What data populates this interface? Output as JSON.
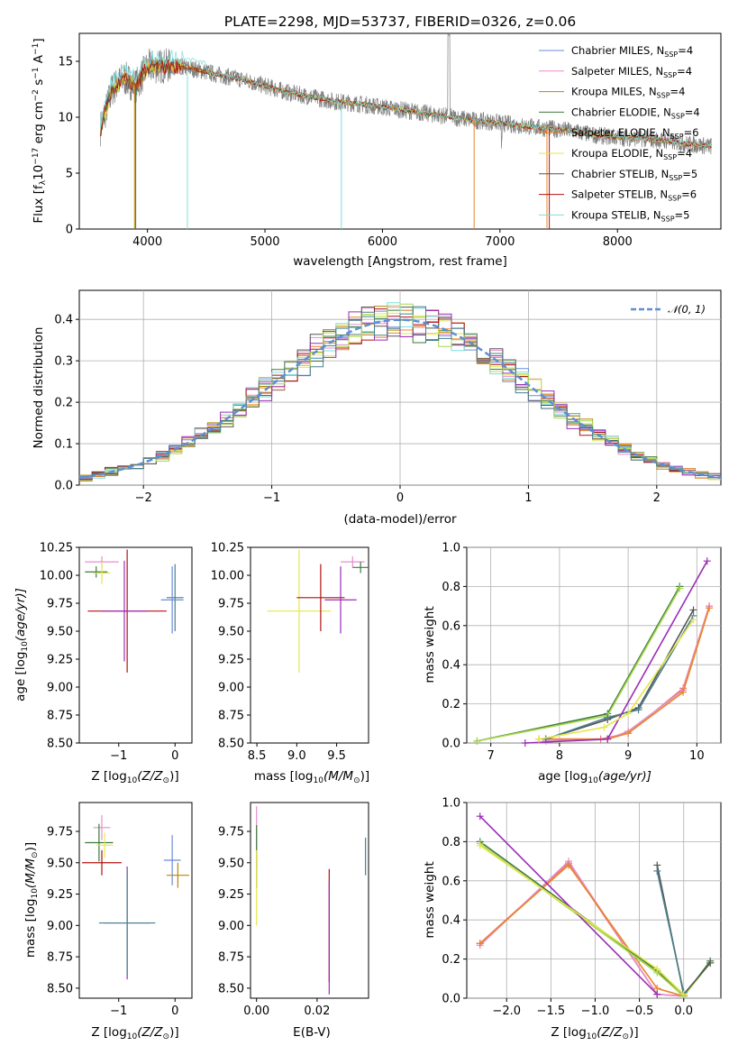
{
  "figure": {
    "title": "PLATE=2298, MJD=53737, FIBERID=0326, z=0.06"
  },
  "colors": {
    "data": "#7f7f7f",
    "series": [
      "#6a8ad8",
      "#e58ecb",
      "#b8860b",
      "#3d7a3d",
      "#e8842a",
      "#e6e64d",
      "#555555",
      "#b01010",
      "#7edede",
      "#9b2cb8",
      "#a8d84a",
      "#4a7f8a",
      "#e87a7a"
    ],
    "normal_curve": "#5b8fd6",
    "grid": "#b0b0b0"
  },
  "chart_data": [
    {
      "id": "spectrum",
      "type": "line",
      "xlabel": "wavelength [Angstrom, rest frame]",
      "ylabel_main": "Flux [f",
      "ylabel_sub": "λ",
      "ylabel_rest": "10",
      "ylabel_sup1": "−17",
      "ylabel_mid": " erg cm",
      "ylabel_sup2": "−2",
      "ylabel_mid2": " s",
      "ylabel_sup3": "−1",
      "ylabel_mid3": " A",
      "ylabel_sup4": "−1",
      "ylabel_end": "]",
      "xlim": [
        3420,
        8880
      ],
      "ylim": [
        0,
        17.5
      ],
      "xticks": [
        4000,
        5000,
        6000,
        7000,
        8000
      ],
      "yticks": [
        0,
        5,
        10,
        15
      ],
      "continuum": {
        "x": [
          3600,
          3700,
          3800,
          3900,
          4000,
          4200,
          4400,
          4600,
          4800,
          5000,
          5200,
          5400,
          5600,
          5800,
          6000,
          6200,
          6400,
          6600,
          6800,
          7000,
          7200,
          7400,
          7600,
          7800,
          8000,
          8200,
          8400,
          8600,
          8800
        ],
        "y": [
          9.0,
          12.5,
          13.5,
          12.8,
          14.5,
          14.6,
          14.3,
          13.8,
          13.4,
          12.8,
          12.2,
          11.8,
          11.4,
          11.2,
          10.9,
          10.6,
          10.3,
          10.0,
          9.7,
          9.5,
          9.2,
          9.0,
          8.8,
          8.4,
          8.2,
          8.1,
          7.9,
          7.6,
          7.4
        ]
      },
      "legend": [
        {
          "label": "Chabrier MILES, N",
          "sub": "SSP",
          "n": "=4"
        },
        {
          "label": "Salpeter MILES, N",
          "sub": "SSP",
          "n": "=4"
        },
        {
          "label": "Kroupa MILES, N",
          "sub": "SSP",
          "n": "=4"
        },
        {
          "label": "Chabrier ELODIE, N",
          "sub": "SSP",
          "n": "=4"
        },
        {
          "label": "Salpeter ELODIE, N",
          "sub": "SSP",
          "n": "=6"
        },
        {
          "label": "Kroupa ELODIE, N",
          "sub": "SSP",
          "n": "=4"
        },
        {
          "label": "Chabrier STELIB, N",
          "sub": "SSP",
          "n": "=5"
        },
        {
          "label": "Salpeter STELIB, N",
          "sub": "SSP",
          "n": "=6"
        },
        {
          "label": "Kroupa STELIB, N",
          "sub": "SSP",
          "n": "=5"
        }
      ],
      "legend_placement": "upper right"
    },
    {
      "id": "residuals",
      "type": "histogram",
      "xlabel": "(data-model)/error",
      "ylabel": "Normed distribution",
      "xlim": [
        -2.5,
        2.5
      ],
      "ylim": [
        0,
        0.47
      ],
      "xticks": [
        -2,
        -1,
        0,
        1,
        2
      ],
      "yticks": [
        0.0,
        0.1,
        0.2,
        0.3,
        0.4
      ],
      "grid": true,
      "legend": "𝒩(0, 1)",
      "legend_placement": "upper right",
      "bin_width": 0.1
    },
    {
      "id": "age-vs-Z",
      "type": "scatter",
      "xlabel": "Z [log",
      "xlabel_sub": "10",
      "xlabel_end": "(Z/Z",
      "xlabel_sun": "⊙",
      "xlabel_close": ")]",
      "ylabel": "age  [log",
      "ylabel_sub": "10",
      "ylabel_end": "(age/yr)]",
      "xlim": [
        -1.7,
        0.3
      ],
      "ylim": [
        8.5,
        10.25
      ],
      "xticks": [
        -1,
        0
      ],
      "yticks": [
        "8.50",
        "8.75",
        "9.00",
        "9.25",
        "9.50",
        "9.75",
        "10.00",
        "10.25"
      ],
      "points": [
        {
          "x": -1.3,
          "y": 10.12,
          "xe": 0.3,
          "ye": 0.05
        },
        {
          "x": -1.4,
          "y": 10.03,
          "xe": 0.2,
          "ye": 0.05
        },
        {
          "x": -1.3,
          "y": 10.02,
          "xe": 0.15,
          "ye": 0.1
        },
        {
          "x": -0.85,
          "y": 9.68,
          "xe": 0.7,
          "ye": 0.55
        },
        {
          "x": -0.9,
          "y": 9.68,
          "xe": 0.4,
          "ye": 0.45
        },
        {
          "x": 0.0,
          "y": 9.8,
          "xe": 0.15,
          "ye": 0.3
        },
        {
          "x": -0.05,
          "y": 9.78,
          "xe": 0.2,
          "ye": 0.3
        }
      ]
    },
    {
      "id": "age-vs-mass",
      "type": "scatter",
      "xlabel": "mass [log",
      "xlabel_sub": "10",
      "xlabel_end": "(M/M",
      "xlabel_sun": "⊙",
      "xlabel_close": ")]",
      "xlim": [
        8.42,
        9.9
      ],
      "ylim": [
        8.5,
        10.25
      ],
      "xticks": [
        "8.5",
        "9.0",
        "9.5"
      ],
      "yticks": [
        "8.50",
        "8.75",
        "9.00",
        "9.25",
        "9.50",
        "9.75",
        "10.00",
        "10.25"
      ],
      "points": [
        {
          "x": 9.7,
          "y": 10.12,
          "xe": 0.15,
          "ye": 0.05
        },
        {
          "x": 9.8,
          "y": 10.07,
          "xe": 0.1,
          "ye": 0.05
        },
        {
          "x": 9.03,
          "y": 9.68,
          "xe": 0.4,
          "ye": 0.55
        },
        {
          "x": 9.3,
          "y": 9.8,
          "xe": 0.3,
          "ye": 0.3
        },
        {
          "x": 9.55,
          "y": 9.78,
          "xe": 0.2,
          "ye": 0.3
        }
      ]
    },
    {
      "id": "weight-vs-age",
      "type": "line",
      "xlabel": "age  [log",
      "xlabel_sub": "10",
      "xlabel_end": "(age/yr)]",
      "ylabel": "mass weight",
      "xlim": [
        6.65,
        10.35
      ],
      "ylim": [
        0,
        1
      ],
      "xticks": [
        7,
        8,
        9,
        10
      ],
      "yticks": [
        "0.0",
        "0.2",
        "0.4",
        "0.6",
        "0.8",
        "1.0"
      ],
      "grid": true,
      "series": [
        {
          "x": [
            7.7,
            8.6,
            9.0,
            9.8,
            10.18
          ],
          "y": [
            0.02,
            0.02,
            0.05,
            0.28,
            0.7
          ]
        },
        {
          "x": [
            7.8,
            8.7,
            9.0,
            9.8,
            10.18
          ],
          "y": [
            0.01,
            0.02,
            0.06,
            0.27,
            0.7
          ]
        },
        {
          "x": [
            7.7,
            8.7,
            9.0,
            9.8,
            10.18
          ],
          "y": [
            0.02,
            0.02,
            0.05,
            0.26,
            0.69
          ]
        },
        {
          "x": [
            6.8,
            8.7,
            9.75
          ],
          "y": [
            0.01,
            0.15,
            0.8
          ]
        },
        {
          "x": [
            6.8,
            8.7,
            9.75
          ],
          "y": [
            0.01,
            0.14,
            0.79
          ]
        },
        {
          "x": [
            7.8,
            8.7,
            9.15,
            9.95
          ],
          "y": [
            0.02,
            0.12,
            0.18,
            0.68
          ]
        },
        {
          "x": [
            7.8,
            8.7,
            9.15,
            9.95
          ],
          "y": [
            0.02,
            0.13,
            0.17,
            0.65
          ]
        },
        {
          "x": [
            7.5,
            8.7,
            10.15
          ],
          "y": [
            0.0,
            0.02,
            0.93
          ]
        },
        {
          "x": [
            7.7,
            8.65,
            9.0,
            9.95
          ],
          "y": [
            0.02,
            0.08,
            0.15,
            0.63
          ]
        }
      ]
    },
    {
      "id": "mass-vs-Z",
      "type": "scatter",
      "xlabel": "Z [log",
      "xlabel_sub": "10",
      "xlabel_end": "(Z/Z",
      "xlabel_sun": "⊙",
      "xlabel_close": ")]",
      "ylabel": "mass [log",
      "ylabel_sub": "10",
      "ylabel_end": "(M/M",
      "ylabel_sun": "⊙",
      "ylabel_close": ")]",
      "xlim": [
        -1.7,
        0.3
      ],
      "ylim": [
        8.42,
        9.98
      ],
      "xticks": [
        -1,
        0
      ],
      "yticks": [
        "8.50",
        "8.75",
        "9.00",
        "9.25",
        "9.50",
        "9.75"
      ],
      "points": [
        {
          "x": -1.3,
          "y": 9.78,
          "xe": 0.15,
          "ye": 0.1
        },
        {
          "x": -1.35,
          "y": 9.66,
          "xe": 0.25,
          "ye": 0.15
        },
        {
          "x": -1.25,
          "y": 9.64,
          "xe": 0.15,
          "ye": 0.1
        },
        {
          "x": -1.3,
          "y": 9.5,
          "xe": 0.35,
          "ye": 0.1
        },
        {
          "x": -0.85,
          "y": 9.02,
          "xe": 0.4,
          "ye": 0.45
        },
        {
          "x": -0.85,
          "y": 9.02,
          "xe": 0.5,
          "ye": 0.42
        },
        {
          "x": -0.05,
          "y": 9.52,
          "xe": 0.15,
          "ye": 0.2
        },
        {
          "x": 0.05,
          "y": 9.4,
          "xe": 0.2,
          "ye": 0.1
        }
      ]
    },
    {
      "id": "mass-vs-EBV",
      "type": "scatter",
      "xlabel": "E(B-V)",
      "xlim": [
        -0.002,
        0.037
      ],
      "ylim": [
        8.42,
        9.98
      ],
      "xticks": [
        "0.00",
        "0.02"
      ],
      "yticks": [
        "8.50",
        "8.75",
        "9.00",
        "9.25",
        "9.50",
        "9.75"
      ],
      "points": [
        {
          "x": 0.0,
          "y": 9.7,
          "ye": 0.25
        },
        {
          "x": 0.0,
          "y": 9.55,
          "ye": 0.25
        },
        {
          "x": 0.0,
          "y": 9.3,
          "ye": 0.3
        },
        {
          "x": 0.024,
          "y": 9.0,
          "ye": 0.45
        },
        {
          "x": 0.024,
          "y": 8.9,
          "ye": 0.45
        },
        {
          "x": 0.036,
          "y": 9.55,
          "ye": 0.15
        }
      ]
    },
    {
      "id": "weight-vs-Z",
      "type": "line",
      "xlabel": "Z [log",
      "xlabel_sub": "10",
      "xlabel_end": "(Z/Z",
      "xlabel_sun": "⊙",
      "xlabel_close": ")]",
      "ylabel": "mass weight",
      "xlim": [
        -2.45,
        0.42
      ],
      "ylim": [
        0,
        1
      ],
      "xticks": [
        "−2.0",
        "−1.5",
        "−1.0",
        "−0.5",
        "0.0"
      ],
      "xtick_vals": [
        -2.0,
        -1.5,
        -1.0,
        -0.5,
        0.0
      ],
      "yticks": [
        "0.0",
        "0.2",
        "0.4",
        "0.6",
        "0.8",
        "1.0"
      ],
      "grid": true,
      "series": [
        {
          "x": [
            -2.3,
            -1.3,
            -0.3,
            0.0
          ],
          "y": [
            0.28,
            0.69,
            0.02,
            0.01
          ]
        },
        {
          "x": [
            -2.3,
            -1.3,
            -0.3,
            0.0
          ],
          "y": [
            0.27,
            0.7,
            0.02,
            0.01
          ]
        },
        {
          "x": [
            -2.3,
            -1.3,
            -0.3,
            0.0
          ],
          "y": [
            0.28,
            0.68,
            0.05,
            0.01
          ]
        },
        {
          "x": [
            -2.3,
            -0.3,
            0.0,
            0.3
          ],
          "y": [
            0.8,
            0.14,
            0.01,
            0.19
          ]
        },
        {
          "x": [
            -2.3,
            -0.3,
            0.0,
            0.3
          ],
          "y": [
            0.79,
            0.13,
            0.01,
            0.18
          ]
        },
        {
          "x": [
            -0.3,
            0.0,
            0.3
          ],
          "y": [
            0.68,
            0.02,
            0.18
          ]
        },
        {
          "x": [
            -0.3,
            0.0
          ],
          "y": [
            0.65,
            0.03
          ]
        },
        {
          "x": [
            -2.3,
            -0.3
          ],
          "y": [
            0.93,
            0.02
          ]
        },
        {
          "x": [
            -2.3,
            -0.3,
            0.0
          ],
          "y": [
            0.78,
            0.15,
            0.02
          ]
        }
      ]
    }
  ]
}
